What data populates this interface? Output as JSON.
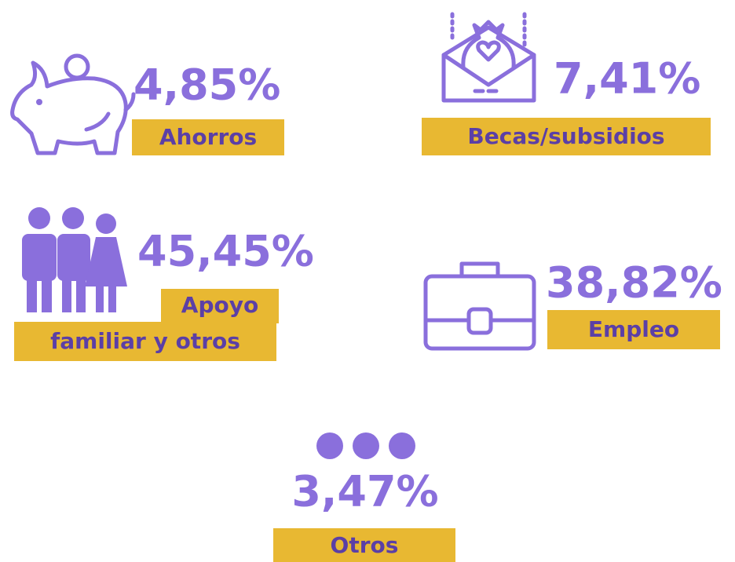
{
  "items": [
    {
      "value": "4,85%",
      "label": "Ahorros"
    },
    {
      "value": "7,41%",
      "label": "Becas/subsidios"
    },
    {
      "value": "45,45%",
      "label_lines": [
        "Apoyo",
        "familiar y otros"
      ]
    },
    {
      "value": "38,82%",
      "label": "Empleo"
    },
    {
      "value": "3,47%",
      "label": "Otros"
    }
  ]
}
